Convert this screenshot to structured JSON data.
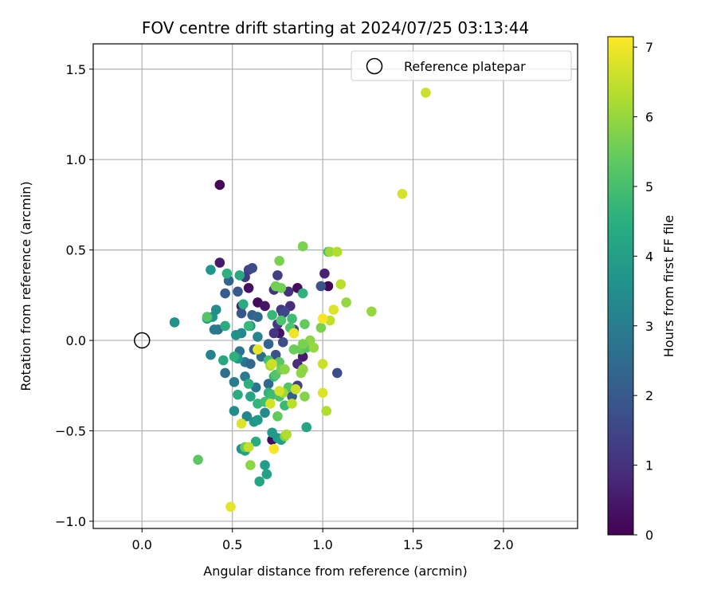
{
  "chart_data": {
    "type": "scatter",
    "title": "FOV centre drift starting at 2024/07/25 03:13:44",
    "xlabel": "Angular distance from reference (arcmin)",
    "ylabel": "Rotation from reference (arcmin)",
    "xlim": [
      -0.27,
      2.41
    ],
    "ylim": [
      -1.04,
      1.64
    ],
    "xticks": [
      0.0,
      0.5,
      1.0,
      1.5,
      2.0
    ],
    "xtick_labels": [
      "0.0",
      "0.5",
      "1.0",
      "1.5",
      "2.0"
    ],
    "yticks": [
      -1.0,
      -0.5,
      0.0,
      0.5,
      1.0,
      1.5
    ],
    "ytick_labels": [
      "−1.0",
      "−0.5",
      "0.0",
      "0.5",
      "1.0",
      "1.5"
    ],
    "grid": true,
    "legend": {
      "placement": "upper right",
      "entries": [
        {
          "label": "Reference platepar",
          "marker": "open-circle",
          "color": "#000000"
        }
      ]
    },
    "reference_point": {
      "x": 0.0,
      "y": 0.0
    },
    "colorbar": {
      "label": "Hours from first FF file",
      "colormap": "viridis",
      "range": [
        0,
        7.15
      ],
      "ticks": [
        0,
        1,
        2,
        3,
        4,
        5,
        6,
        7
      ],
      "tick_labels": [
        "0",
        "1",
        "2",
        "3",
        "4",
        "5",
        "6",
        "7"
      ]
    },
    "points": [
      {
        "x": 0.43,
        "y": 0.86,
        "h": 0.1
      },
      {
        "x": 0.43,
        "y": 0.43,
        "h": 0.5
      },
      {
        "x": 0.59,
        "y": 0.29,
        "h": 0.3
      },
      {
        "x": 0.64,
        "y": 0.21,
        "h": 0.2
      },
      {
        "x": 0.68,
        "y": 0.19,
        "h": 0.4
      },
      {
        "x": 0.55,
        "y": 0.19,
        "h": 0.6
      },
      {
        "x": 0.76,
        "y": 0.04,
        "h": 0.3
      },
      {
        "x": 0.86,
        "y": 0.29,
        "h": 0.2
      },
      {
        "x": 1.03,
        "y": 0.3,
        "h": 0.1
      },
      {
        "x": 1.01,
        "y": 0.37,
        "h": 0.7
      },
      {
        "x": 0.89,
        "y": -0.09,
        "h": 0.5
      },
      {
        "x": 0.89,
        "y": -0.16,
        "h": 0.3
      },
      {
        "x": 0.72,
        "y": -0.55,
        "h": 0.2
      },
      {
        "x": 0.86,
        "y": -0.13,
        "h": 0.9
      },
      {
        "x": 0.75,
        "y": 0.36,
        "h": 1.3
      },
      {
        "x": 0.59,
        "y": 0.39,
        "h": 1.5
      },
      {
        "x": 0.61,
        "y": 0.4,
        "h": 1.6
      },
      {
        "x": 0.73,
        "y": 0.28,
        "h": 1.1
      },
      {
        "x": 0.82,
        "y": 0.19,
        "h": 0.9
      },
      {
        "x": 0.77,
        "y": 0.17,
        "h": 1.2
      },
      {
        "x": 0.78,
        "y": 0.15,
        "h": 1.4
      },
      {
        "x": 0.81,
        "y": 0.27,
        "h": 1.0
      },
      {
        "x": 0.99,
        "y": 0.3,
        "h": 1.8
      },
      {
        "x": 1.08,
        "y": -0.18,
        "h": 1.7
      },
      {
        "x": 0.57,
        "y": 0.35,
        "h": 1.2
      },
      {
        "x": 0.55,
        "y": 0.15,
        "h": 1.9
      },
      {
        "x": 0.61,
        "y": 0.14,
        "h": 2.2
      },
      {
        "x": 0.64,
        "y": 0.13,
        "h": 2.4
      },
      {
        "x": 0.46,
        "y": 0.26,
        "h": 2.1
      },
      {
        "x": 0.53,
        "y": 0.27,
        "h": 2.0
      },
      {
        "x": 0.48,
        "y": 0.33,
        "h": 2.3
      },
      {
        "x": 0.42,
        "y": 0.06,
        "h": 2.6
      },
      {
        "x": 0.4,
        "y": 0.06,
        "h": 2.9
      },
      {
        "x": 0.38,
        "y": -0.08,
        "h": 3.2
      },
      {
        "x": 0.46,
        "y": -0.18,
        "h": 2.6
      },
      {
        "x": 0.51,
        "y": -0.23,
        "h": 3.0
      },
      {
        "x": 0.54,
        "y": -0.06,
        "h": 2.7
      },
      {
        "x": 0.57,
        "y": -0.12,
        "h": 2.8
      },
      {
        "x": 0.6,
        "y": -0.13,
        "h": 2.4
      },
      {
        "x": 0.62,
        "y": -0.05,
        "h": 2.2
      },
      {
        "x": 0.66,
        "y": -0.09,
        "h": 2.5
      },
      {
        "x": 0.7,
        "y": -0.02,
        "h": 2.3
      },
      {
        "x": 0.74,
        "y": -0.08,
        "h": 1.8
      },
      {
        "x": 0.78,
        "y": -0.01,
        "h": 1.7
      },
      {
        "x": 0.79,
        "y": 0.16,
        "h": 1.5
      },
      {
        "x": 0.75,
        "y": 0.09,
        "h": 1.2
      },
      {
        "x": 0.73,
        "y": 0.04,
        "h": 1.1
      },
      {
        "x": 0.84,
        "y": 0.06,
        "h": 1.6
      },
      {
        "x": 0.86,
        "y": -0.25,
        "h": 1.4
      },
      {
        "x": 0.83,
        "y": -0.31,
        "h": 2.1
      },
      {
        "x": 0.7,
        "y": -0.24,
        "h": 2.4
      },
      {
        "x": 0.63,
        "y": -0.26,
        "h": 2.8
      },
      {
        "x": 0.57,
        "y": -0.2,
        "h": 3.0
      },
      {
        "x": 0.55,
        "y": 0.04,
        "h": 3.4
      },
      {
        "x": 0.6,
        "y": 0.08,
        "h": 3.6
      },
      {
        "x": 0.64,
        "y": 0.02,
        "h": 3.3
      },
      {
        "x": 0.52,
        "y": 0.03,
        "h": 3.6
      },
      {
        "x": 0.53,
        "y": -0.1,
        "h": 3.8
      },
      {
        "x": 0.51,
        "y": -0.39,
        "h": 3.5
      },
      {
        "x": 0.58,
        "y": -0.42,
        "h": 3.3
      },
      {
        "x": 0.62,
        "y": -0.45,
        "h": 3.7
      },
      {
        "x": 0.68,
        "y": -0.4,
        "h": 3.4
      },
      {
        "x": 0.72,
        "y": -0.51,
        "h": 3.9
      },
      {
        "x": 0.55,
        "y": -0.6,
        "h": 3.6
      },
      {
        "x": 0.57,
        "y": -0.61,
        "h": 4.1
      },
      {
        "x": 0.64,
        "y": -0.44,
        "h": 3.9
      },
      {
        "x": 0.75,
        "y": -0.54,
        "h": 3.8
      },
      {
        "x": 0.77,
        "y": -0.55,
        "h": 4.0
      },
      {
        "x": 0.68,
        "y": -0.69,
        "h": 4.0
      },
      {
        "x": 0.69,
        "y": -0.74,
        "h": 4.1
      },
      {
        "x": 0.65,
        "y": -0.78,
        "h": 4.2
      },
      {
        "x": 0.63,
        "y": -0.56,
        "h": 4.4
      },
      {
        "x": 0.91,
        "y": -0.48,
        "h": 4.2
      },
      {
        "x": 0.38,
        "y": 0.39,
        "h": 3.7
      },
      {
        "x": 0.39,
        "y": 0.13,
        "h": 3.7
      },
      {
        "x": 0.36,
        "y": 0.12,
        "h": 3.9
      },
      {
        "x": 0.18,
        "y": 0.1,
        "h": 3.6
      },
      {
        "x": 0.41,
        "y": 0.17,
        "h": 3.5
      },
      {
        "x": 0.45,
        "y": -0.11,
        "h": 4.3
      },
      {
        "x": 0.51,
        "y": -0.09,
        "h": 4.5
      },
      {
        "x": 0.53,
        "y": -0.3,
        "h": 4.4
      },
      {
        "x": 0.6,
        "y": -0.31,
        "h": 4.2
      },
      {
        "x": 0.59,
        "y": -0.24,
        "h": 4.5
      },
      {
        "x": 0.64,
        "y": -0.35,
        "h": 4.7
      },
      {
        "x": 0.68,
        "y": -0.34,
        "h": 5.0
      },
      {
        "x": 0.7,
        "y": -0.29,
        "h": 4.6
      },
      {
        "x": 0.72,
        "y": -0.3,
        "h": 4.9
      },
      {
        "x": 0.73,
        "y": -0.2,
        "h": 4.8
      },
      {
        "x": 0.76,
        "y": -0.31,
        "h": 5.1
      },
      {
        "x": 0.79,
        "y": -0.36,
        "h": 4.8
      },
      {
        "x": 0.81,
        "y": -0.26,
        "h": 5.2
      },
      {
        "x": 0.76,
        "y": -0.12,
        "h": 5.3
      },
      {
        "x": 0.7,
        "y": -0.11,
        "h": 5.0
      },
      {
        "x": 0.72,
        "y": 0.14,
        "h": 4.8
      },
      {
        "x": 0.77,
        "y": 0.11,
        "h": 5.1
      },
      {
        "x": 0.83,
        "y": 0.12,
        "h": 4.9
      },
      {
        "x": 0.84,
        "y": 0.04,
        "h": 5.3
      },
      {
        "x": 0.88,
        "y": -0.05,
        "h": 5.5
      },
      {
        "x": 0.91,
        "y": -0.04,
        "h": 5.2
      },
      {
        "x": 0.89,
        "y": 0.26,
        "h": 4.6
      },
      {
        "x": 0.82,
        "y": 0.07,
        "h": 5.1
      },
      {
        "x": 0.59,
        "y": 0.08,
        "h": 4.8
      },
      {
        "x": 0.56,
        "y": 0.2,
        "h": 4.4
      },
      {
        "x": 0.46,
        "y": 0.08,
        "h": 4.4
      },
      {
        "x": 0.54,
        "y": 0.36,
        "h": 4.3
      },
      {
        "x": 0.47,
        "y": 0.37,
        "h": 4.5
      },
      {
        "x": 0.36,
        "y": 0.13,
        "h": 5.2
      },
      {
        "x": 0.31,
        "y": -0.66,
        "h": 5.3
      },
      {
        "x": 0.57,
        "y": -0.59,
        "h": 5.5
      },
      {
        "x": 0.6,
        "y": -0.69,
        "h": 5.9
      },
      {
        "x": 0.79,
        "y": -0.53,
        "h": 5.8
      },
      {
        "x": 0.75,
        "y": -0.42,
        "h": 5.4
      },
      {
        "x": 0.74,
        "y": -0.19,
        "h": 5.2
      },
      {
        "x": 0.77,
        "y": -0.16,
        "h": 5.6
      },
      {
        "x": 0.79,
        "y": -0.16,
        "h": 5.9
      },
      {
        "x": 0.78,
        "y": -0.29,
        "h": 6.1
      },
      {
        "x": 0.71,
        "y": -0.14,
        "h": 6.2
      },
      {
        "x": 0.74,
        "y": 0.3,
        "h": 5.6
      },
      {
        "x": 0.76,
        "y": 0.44,
        "h": 5.7
      },
      {
        "x": 0.77,
        "y": 0.29,
        "h": 5.6
      },
      {
        "x": 0.9,
        "y": 0.09,
        "h": 5.4
      },
      {
        "x": 0.93,
        "y": 0.0,
        "h": 5.9
      },
      {
        "x": 0.95,
        "y": -0.04,
        "h": 6.0
      },
      {
        "x": 0.89,
        "y": -0.02,
        "h": 5.7
      },
      {
        "x": 0.84,
        "y": -0.05,
        "h": 5.5
      },
      {
        "x": 0.89,
        "y": -0.16,
        "h": 6.0
      },
      {
        "x": 0.9,
        "y": -0.31,
        "h": 5.8
      },
      {
        "x": 0.88,
        "y": -0.18,
        "h": 5.9
      },
      {
        "x": 0.99,
        "y": 0.07,
        "h": 5.7
      },
      {
        "x": 1.03,
        "y": 0.49,
        "h": 5.0
      },
      {
        "x": 0.89,
        "y": 0.52,
        "h": 5.7
      },
      {
        "x": 1.04,
        "y": 0.49,
        "h": 6.1
      },
      {
        "x": 1.08,
        "y": 0.49,
        "h": 6.3
      },
      {
        "x": 1.1,
        "y": 0.31,
        "h": 6.4
      },
      {
        "x": 1.13,
        "y": 0.21,
        "h": 6.0
      },
      {
        "x": 1.27,
        "y": 0.16,
        "h": 6.0
      },
      {
        "x": 1.06,
        "y": 0.17,
        "h": 6.8
      },
      {
        "x": 1.04,
        "y": 0.11,
        "h": 6.5
      },
      {
        "x": 1.0,
        "y": 0.12,
        "h": 7.1
      },
      {
        "x": 1.0,
        "y": -0.13,
        "h": 6.6
      },
      {
        "x": 1.0,
        "y": -0.29,
        "h": 6.8
      },
      {
        "x": 1.02,
        "y": -0.39,
        "h": 6.3
      },
      {
        "x": 0.83,
        "y": -0.35,
        "h": 6.4
      },
      {
        "x": 0.85,
        "y": -0.27,
        "h": 6.6
      },
      {
        "x": 0.84,
        "y": 0.04,
        "h": 7.0
      },
      {
        "x": 0.72,
        "y": -0.13,
        "h": 6.6
      },
      {
        "x": 0.64,
        "y": -0.05,
        "h": 6.9
      },
      {
        "x": 0.71,
        "y": -0.35,
        "h": 6.7
      },
      {
        "x": 0.76,
        "y": -0.28,
        "h": 6.7
      },
      {
        "x": 0.8,
        "y": -0.52,
        "h": 6.3
      },
      {
        "x": 0.59,
        "y": -0.59,
        "h": 6.5
      },
      {
        "x": 0.55,
        "y": -0.46,
        "h": 6.8
      },
      {
        "x": 0.73,
        "y": -0.6,
        "h": 7.1
      },
      {
        "x": 0.49,
        "y": -0.92,
        "h": 6.9
      },
      {
        "x": 1.44,
        "y": 0.81,
        "h": 6.7
      },
      {
        "x": 1.57,
        "y": 1.37,
        "h": 6.6
      }
    ]
  }
}
